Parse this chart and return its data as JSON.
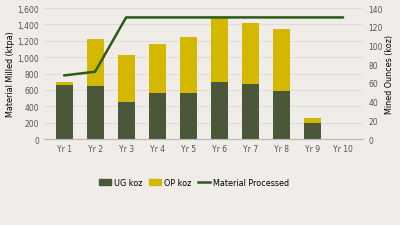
{
  "categories": [
    "Yr 1",
    "Yr 2",
    "Yr 3",
    "Yr 4",
    "Yr 5",
    "Yr 6",
    "Yr 7",
    "Yr 8",
    "Yr 9",
    "Yr 10"
  ],
  "ug_koz": [
    660,
    650,
    450,
    565,
    565,
    700,
    670,
    585,
    195,
    0
  ],
  "op_koz": [
    35,
    575,
    580,
    590,
    685,
    780,
    745,
    765,
    60,
    0
  ],
  "material_processed": [
    68,
    72,
    130,
    130,
    130,
    130,
    130,
    130,
    130,
    130
  ],
  "ylabel_left": "Material Milled (ktpa)",
  "ylabel_right": "Mined Ounces (koz)",
  "ylim_left": [
    0,
    1600
  ],
  "ylim_right": [
    0,
    140
  ],
  "yticks_left": [
    0,
    200,
    400,
    600,
    800,
    1000,
    1200,
    1400,
    1600
  ],
  "yticks_right": [
    0,
    20,
    40,
    60,
    80,
    100,
    120,
    140
  ],
  "bar_color_ug": "#4a5738",
  "bar_color_op": "#d4b800",
  "line_color": "#2d5a1b",
  "bg_color": "#f0ede8",
  "grid_color": "#e0ddd8",
  "legend_labels": [
    "UG koz",
    "OP koz",
    "Material Processed"
  ],
  "bar_width": 0.55,
  "figsize": [
    4.0,
    2.26
  ],
  "dpi": 100
}
